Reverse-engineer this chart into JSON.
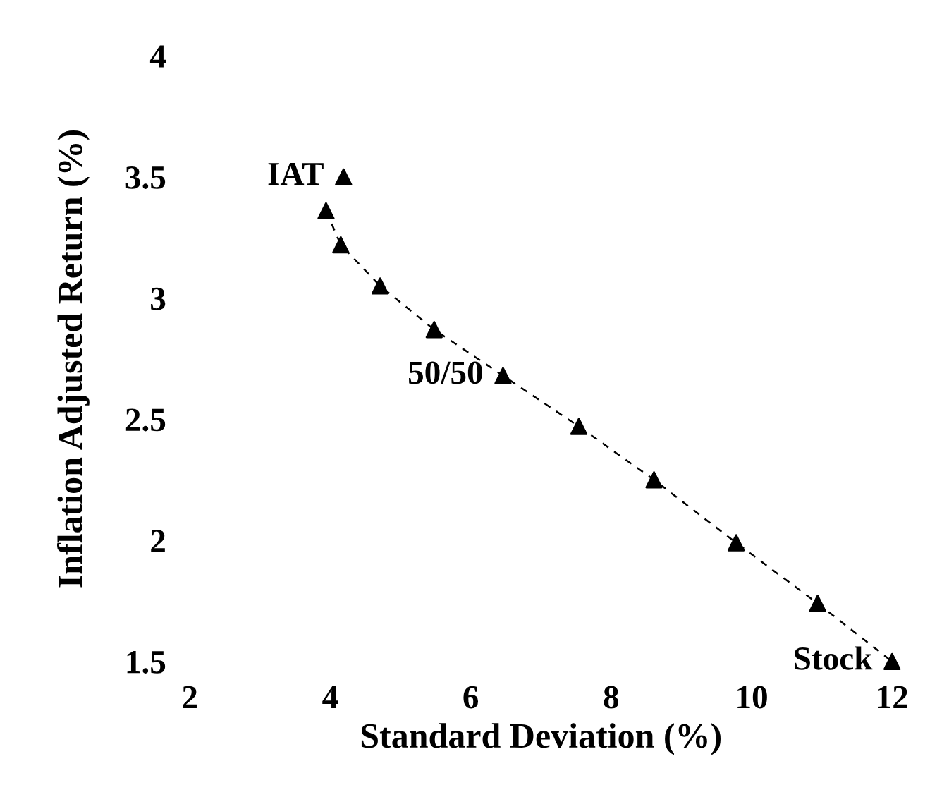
{
  "chart_data": {
    "type": "scatter",
    "xlabel": "Standard Deviation (%)",
    "ylabel": "Inflation Adjusted Return (%)",
    "xlim": [
      2,
      12
    ],
    "ylim": [
      1.5,
      4
    ],
    "xticks": [
      2,
      4,
      6,
      8,
      10,
      12
    ],
    "yticks": [
      1.5,
      2,
      2.5,
      3,
      3.5,
      4
    ],
    "grid": false,
    "legend": false,
    "series": [
      {
        "color": "#000000",
        "marker": "triangle",
        "x": [
          4.19,
          3.94,
          4.15,
          4.71,
          5.48,
          6.46,
          7.54,
          8.61,
          9.78,
          10.94,
          12.0
        ],
        "values": [
          3.5,
          3.36,
          3.22,
          3.05,
          2.87,
          2.68,
          2.47,
          2.25,
          1.99,
          1.74,
          1.5
        ]
      },
      {
        "type": "line",
        "color": "#000000",
        "marker": "none",
        "line_style": "dashed",
        "x": [
          3.94,
          4.15,
          4.71,
          5.48,
          6.46,
          7.54,
          8.61,
          9.78,
          10.94,
          12.0
        ],
        "values": [
          3.36,
          3.22,
          3.05,
          2.87,
          2.68,
          2.47,
          2.25,
          1.99,
          1.74,
          1.5
        ]
      }
    ],
    "annotations": [
      {
        "text": "IAT",
        "x": 4.19,
        "y": 3.5
      },
      {
        "text": "50/50",
        "x": 6.46,
        "y": 2.68
      },
      {
        "text": "Stock",
        "x": 12.0,
        "y": 1.5
      }
    ]
  }
}
